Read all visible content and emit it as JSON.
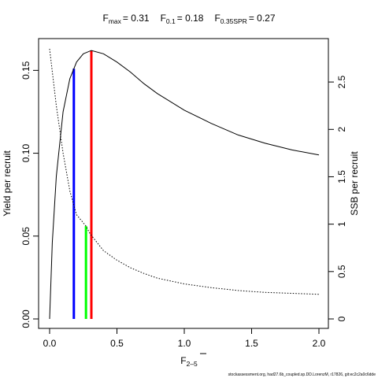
{
  "chart_data": {
    "type": "line",
    "title": {
      "fmax": {
        "sym": "F",
        "sub": "max",
        "value": "= 0.31"
      },
      "f01": {
        "sym": "F",
        "sub": "0.1",
        "value": "= 0.18"
      },
      "fspr": {
        "sym": "F",
        "sub": "0.35SPR",
        "value": "= 0.27"
      }
    },
    "xlabel": {
      "sym": "F",
      "sub": "2–5"
    },
    "ylabel_left": "Yield per recruit",
    "ylabel_right": "SSB per recruit",
    "xlim": [
      0,
      2
    ],
    "ylim_left": [
      0,
      0.163
    ],
    "ylim_right": [
      0,
      2.85
    ],
    "x_ticks": [
      "0.0",
      "0.5",
      "1.0",
      "1.5",
      "2.0"
    ],
    "y_left_ticks": [
      "0.00",
      "0.05",
      "0.10",
      "0.15"
    ],
    "y_right_ticks": [
      "0",
      "0.5",
      "1",
      "1.5",
      "2",
      "2.5"
    ],
    "series": [
      {
        "axis": "left",
        "style": "solid",
        "x": [
          0,
          0.02,
          0.05,
          0.1,
          0.15,
          0.2,
          0.25,
          0.31,
          0.4,
          0.5,
          0.6,
          0.7,
          0.8,
          1.0,
          1.2,
          1.4,
          1.6,
          1.8,
          2.0
        ],
        "y": [
          0,
          0.046,
          0.086,
          0.125,
          0.145,
          0.155,
          0.16,
          0.162,
          0.16,
          0.155,
          0.149,
          0.142,
          0.136,
          0.126,
          0.118,
          0.111,
          0.106,
          0.102,
          0.099
        ]
      },
      {
        "axis": "right",
        "style": "dotted",
        "x": [
          0,
          0.05,
          0.1,
          0.15,
          0.2,
          0.27,
          0.3,
          0.4,
          0.5,
          0.6,
          0.7,
          0.8,
          1.0,
          1.2,
          1.4,
          1.6,
          1.8,
          2.0
        ],
        "y": [
          2.85,
          2.25,
          1.75,
          1.35,
          1.1,
          0.98,
          0.9,
          0.72,
          0.62,
          0.54,
          0.48,
          0.43,
          0.37,
          0.33,
          0.3,
          0.28,
          0.27,
          0.26
        ]
      }
    ],
    "reference_lines": [
      {
        "name": "F0.1",
        "x": 0.18,
        "y": 0.151,
        "color": "#0000ff"
      },
      {
        "name": "F0.35SPR",
        "x": 0.27,
        "y": 0.056,
        "color": "#00ff00"
      },
      {
        "name": "Fmax",
        "x": 0.31,
        "y": 0.162,
        "color": "#ff0000"
      }
    ],
    "footer": "stockassessment.org, had27.6b_coupled.sp.DD.LorenzM, r17826, git:ec2c2a0c6dde"
  }
}
